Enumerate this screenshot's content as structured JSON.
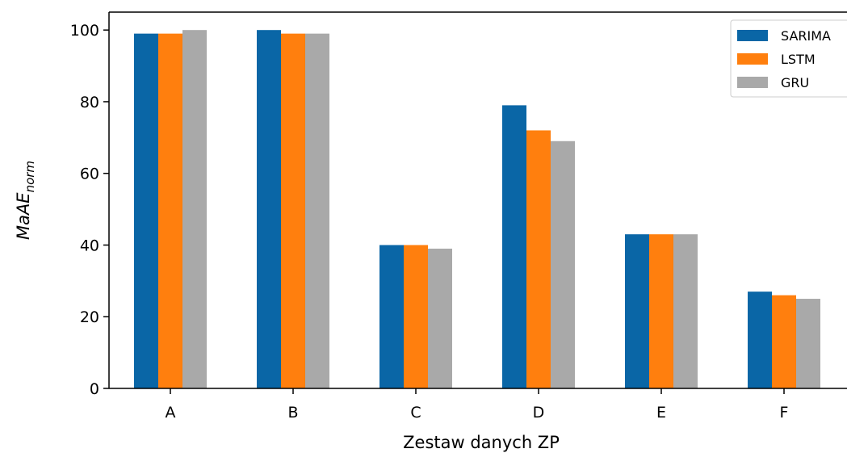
{
  "chart_data": {
    "type": "bar",
    "categories": [
      "A",
      "B",
      "C",
      "D",
      "E",
      "F"
    ],
    "series": [
      {
        "name": "SARIMA",
        "color": "#0a66a6",
        "values": [
          99,
          100,
          40,
          79,
          43,
          27
        ]
      },
      {
        "name": "LSTM",
        "color": "#ff7f0e",
        "values": [
          99,
          99,
          40,
          72,
          43,
          26
        ]
      },
      {
        "name": "GRU",
        "color": "#a9a9a9",
        "values": [
          100,
          99,
          39,
          69,
          43,
          25
        ]
      }
    ],
    "xlabel": "Zestaw danych ZP",
    "ylabel": {
      "base": "MaAE",
      "subscript": "norm"
    },
    "ylim": [
      0,
      105
    ],
    "yticks": [
      0,
      20,
      40,
      60,
      80,
      100
    ],
    "legend_position": "top-right",
    "grid": false
  }
}
